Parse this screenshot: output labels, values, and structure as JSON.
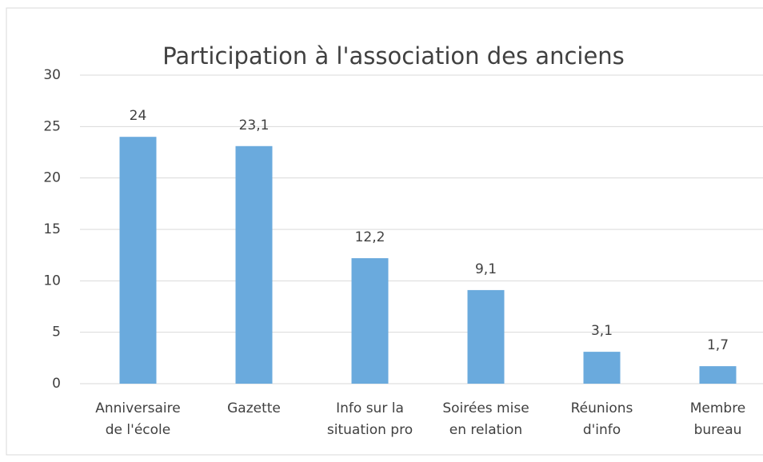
{
  "chart_data": {
    "type": "bar",
    "title": "Participation à l'association des anciens",
    "categories": [
      "Anniversaire\nde l'école",
      "Gazette",
      "Info sur la\nsituation pro",
      "Soirées mise\nen relation",
      "Réunions\nd'info",
      "Membre\nbureau"
    ],
    "values": [
      24,
      23.1,
      12.2,
      9.1,
      3.1,
      1.7
    ],
    "value_labels": [
      "24",
      "23,1",
      "12,2",
      "9,1",
      "3,1",
      "1,7"
    ],
    "color": "#6aaadd",
    "ylim": [
      0,
      30
    ],
    "yticks": [
      0,
      5,
      10,
      15,
      20,
      25,
      30
    ],
    "grid": true
  }
}
